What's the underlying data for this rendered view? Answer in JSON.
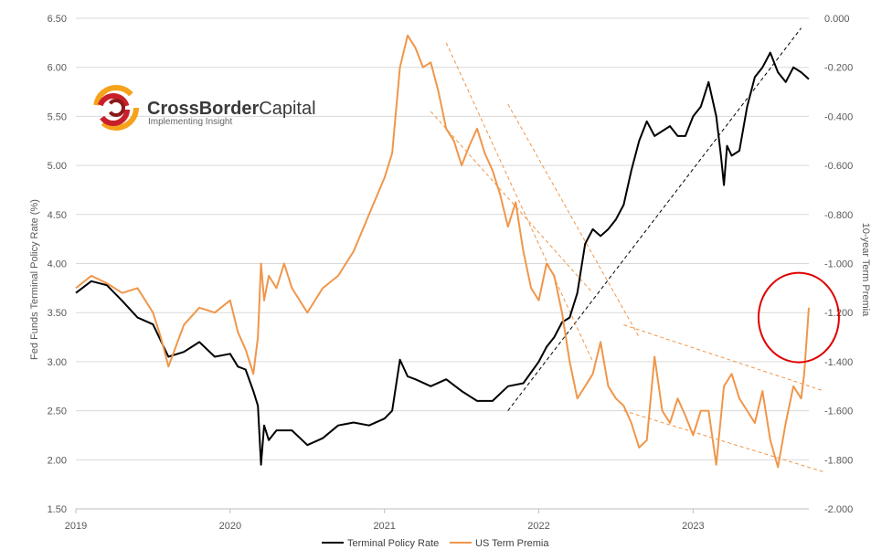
{
  "logo": {
    "name_bold": "CrossBorder",
    "name_light": "Capital",
    "tagline": "Implementing Insight"
  },
  "colors": {
    "terminal": "#000000",
    "premia": "#F0964A",
    "trend_black": "#000000",
    "trend_orange": "#F0964A",
    "highlight_circle": "#E00000",
    "grid": "#d9d9d9"
  },
  "chart_data": {
    "type": "line",
    "title": "",
    "xlabel": "",
    "ylabel": "Fed Funds Terminal Policy Rate (%)",
    "y2label": "10-year Term Premia",
    "x_ticks": [
      "2019",
      "2020",
      "2021",
      "2022",
      "2023"
    ],
    "ylim": [
      1.5,
      6.5
    ],
    "y_ticks": [
      "1.50",
      "2.00",
      "2.50",
      "3.00",
      "3.50",
      "4.00",
      "4.50",
      "5.00",
      "5.50",
      "6.00",
      "6.50"
    ],
    "y2lim": [
      -2.0,
      0.0
    ],
    "y2_ticks": [
      "-2.000",
      "-1.800",
      "-1.600",
      "-1.400",
      "-1.200",
      "-1.000",
      "-0.800",
      "-0.600",
      "-0.400",
      "-0.200",
      "0.000"
    ],
    "grid": true,
    "legend_position": "bottom",
    "series": [
      {
        "name": "Terminal Policy Rate",
        "axis": "left",
        "x": [
          2019.0,
          2019.1,
          2019.2,
          2019.3,
          2019.4,
          2019.5,
          2019.6,
          2019.7,
          2019.8,
          2019.9,
          2020.0,
          2020.05,
          2020.1,
          2020.15,
          2020.18,
          2020.2,
          2020.22,
          2020.25,
          2020.3,
          2020.4,
          2020.5,
          2020.6,
          2020.7,
          2020.8,
          2020.9,
          2021.0,
          2021.05,
          2021.1,
          2021.15,
          2021.2,
          2021.3,
          2021.4,
          2021.5,
          2021.6,
          2021.7,
          2021.8,
          2021.9,
          2022.0,
          2022.05,
          2022.1,
          2022.15,
          2022.2,
          2022.25,
          2022.3,
          2022.35,
          2022.4,
          2022.45,
          2022.5,
          2022.55,
          2022.6,
          2022.65,
          2022.7,
          2022.75,
          2022.8,
          2022.85,
          2022.9,
          2022.95,
          2023.0,
          2023.05,
          2023.1,
          2023.15,
          2023.18,
          2023.2,
          2023.22,
          2023.25,
          2023.3,
          2023.35,
          2023.4,
          2023.45,
          2023.5,
          2023.55,
          2023.6,
          2023.65,
          2023.7,
          2023.75
        ],
        "values": [
          3.7,
          3.82,
          3.78,
          3.62,
          3.45,
          3.38,
          3.05,
          3.1,
          3.2,
          3.05,
          3.08,
          2.95,
          2.92,
          2.7,
          2.55,
          1.95,
          2.35,
          2.2,
          2.3,
          2.3,
          2.15,
          2.22,
          2.35,
          2.38,
          2.35,
          2.42,
          2.5,
          3.02,
          2.85,
          2.82,
          2.75,
          2.82,
          2.7,
          2.6,
          2.6,
          2.75,
          2.78,
          3.0,
          3.15,
          3.25,
          3.4,
          3.45,
          3.7,
          4.2,
          4.35,
          4.28,
          4.35,
          4.45,
          4.6,
          4.95,
          5.25,
          5.45,
          5.3,
          5.35,
          5.4,
          5.3,
          5.3,
          5.5,
          5.6,
          5.85,
          5.5,
          5.1,
          4.8,
          5.2,
          5.1,
          5.15,
          5.6,
          5.9,
          6.0,
          6.15,
          5.95,
          5.85,
          6.0,
          5.95,
          5.88
        ]
      },
      {
        "name": "US Term Premia",
        "axis": "right",
        "x": [
          2019.0,
          2019.1,
          2019.2,
          2019.3,
          2019.4,
          2019.5,
          2019.55,
          2019.6,
          2019.7,
          2019.8,
          2019.9,
          2020.0,
          2020.05,
          2020.1,
          2020.15,
          2020.18,
          2020.2,
          2020.22,
          2020.25,
          2020.3,
          2020.35,
          2020.4,
          2020.5,
          2020.6,
          2020.7,
          2020.8,
          2020.9,
          2021.0,
          2021.05,
          2021.1,
          2021.15,
          2021.2,
          2021.25,
          2021.3,
          2021.35,
          2021.4,
          2021.45,
          2021.5,
          2021.55,
          2021.6,
          2021.65,
          2021.7,
          2021.75,
          2021.8,
          2021.85,
          2021.9,
          2021.95,
          2022.0,
          2022.05,
          2022.1,
          2022.15,
          2022.2,
          2022.25,
          2022.3,
          2022.35,
          2022.4,
          2022.45,
          2022.5,
          2022.55,
          2022.6,
          2022.65,
          2022.7,
          2022.75,
          2022.8,
          2022.85,
          2022.9,
          2022.95,
          2023.0,
          2023.05,
          2023.1,
          2023.15,
          2023.2,
          2023.25,
          2023.3,
          2023.35,
          2023.4,
          2023.45,
          2023.5,
          2023.55,
          2023.6,
          2023.65,
          2023.7,
          2023.72,
          2023.75
        ],
        "values": [
          -1.1,
          -1.05,
          -1.08,
          -1.12,
          -1.1,
          -1.2,
          -1.3,
          -1.42,
          -1.25,
          -1.18,
          -1.2,
          -1.15,
          -1.28,
          -1.35,
          -1.45,
          -1.3,
          -1.0,
          -1.15,
          -1.05,
          -1.1,
          -1.0,
          -1.1,
          -1.2,
          -1.1,
          -1.05,
          -0.95,
          -0.8,
          -0.65,
          -0.55,
          -0.2,
          -0.07,
          -0.12,
          -0.2,
          -0.18,
          -0.3,
          -0.45,
          -0.5,
          -0.6,
          -0.52,
          -0.45,
          -0.55,
          -0.62,
          -0.72,
          -0.85,
          -0.75,
          -0.95,
          -1.1,
          -1.15,
          -1.0,
          -1.05,
          -1.2,
          -1.4,
          -1.55,
          -1.5,
          -1.45,
          -1.32,
          -1.5,
          -1.55,
          -1.58,
          -1.65,
          -1.75,
          -1.72,
          -1.38,
          -1.6,
          -1.65,
          -1.55,
          -1.62,
          -1.7,
          -1.6,
          -1.6,
          -1.82,
          -1.5,
          -1.45,
          -1.55,
          -1.6,
          -1.65,
          -1.52,
          -1.72,
          -1.83,
          -1.65,
          -1.5,
          -1.55,
          -1.45,
          -1.18
        ]
      }
    ],
    "trend_lines": [
      {
        "color": "black",
        "axis": "left",
        "x": [
          2021.8,
          2023.7
        ],
        "values": [
          2.5,
          6.4
        ]
      },
      {
        "color": "orange",
        "axis": "right",
        "x": [
          2021.4,
          2022.35
        ],
        "values": [
          -0.1,
          -1.4
        ]
      },
      {
        "color": "orange",
        "axis": "right",
        "x": [
          2021.8,
          2022.65
        ],
        "values": [
          -0.35,
          -1.3
        ]
      },
      {
        "color": "orange",
        "axis": "right",
        "x": [
          2021.3,
          2022.35
        ],
        "values": [
          -0.38,
          -1.12
        ]
      },
      {
        "color": "orange",
        "axis": "right",
        "x": [
          2022.55,
          2023.85
        ],
        "values": [
          -1.25,
          -1.52
        ]
      },
      {
        "color": "orange",
        "axis": "right",
        "x": [
          2022.55,
          2023.85
        ],
        "values": [
          -1.6,
          -1.85
        ]
      }
    ],
    "highlight": {
      "shape": "circle",
      "x": 2023.72,
      "axis": "right",
      "value": -1.22
    }
  }
}
